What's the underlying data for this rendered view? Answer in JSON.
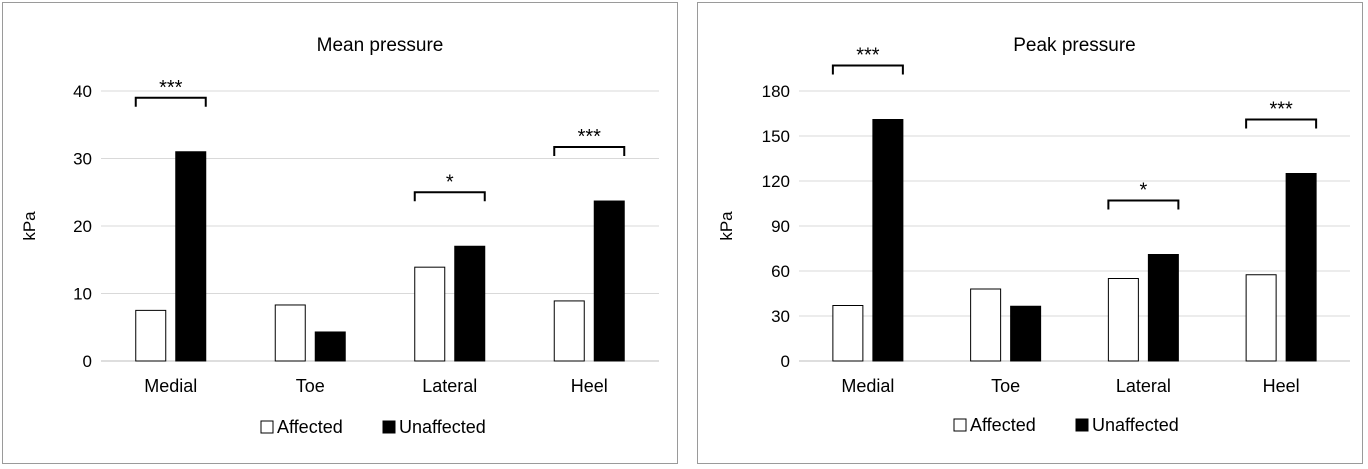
{
  "chart_data": [
    {
      "type": "bar",
      "title": "Mean pressure",
      "ylabel": "kPa",
      "xlabel": "",
      "ylim": [
        0,
        40
      ],
      "yticks": [
        0,
        10,
        20,
        30,
        40
      ],
      "categories": [
        "Medial",
        "Toe",
        "Lateral",
        "Heel"
      ],
      "series": [
        {
          "name": "Affected",
          "color": "#ffffff",
          "values": [
            7.5,
            8.3,
            13.9,
            8.9
          ]
        },
        {
          "name": "Unaffected",
          "color": "#000000",
          "values": [
            31.0,
            4.3,
            17.0,
            23.7
          ]
        }
      ],
      "significance": [
        "***",
        "",
        "*",
        "***"
      ],
      "grid": true,
      "legend": "bottom"
    },
    {
      "type": "bar",
      "title": "Peak pressure",
      "ylabel": "kPa",
      "xlabel": "",
      "ylim": [
        0,
        180
      ],
      "yticks": [
        0,
        30,
        60,
        90,
        120,
        150,
        180
      ],
      "categories": [
        "Medial",
        "Toe",
        "Lateral",
        "Heel"
      ],
      "series": [
        {
          "name": "Affected",
          "color": "#ffffff",
          "values": [
            37,
            48,
            55,
            57.5
          ]
        },
        {
          "name": "Unaffected",
          "color": "#000000",
          "values": [
            161,
            36.5,
            71,
            125
          ]
        }
      ],
      "significance": [
        "***",
        "",
        "*",
        "***"
      ],
      "grid": true,
      "legend": "bottom"
    }
  ]
}
